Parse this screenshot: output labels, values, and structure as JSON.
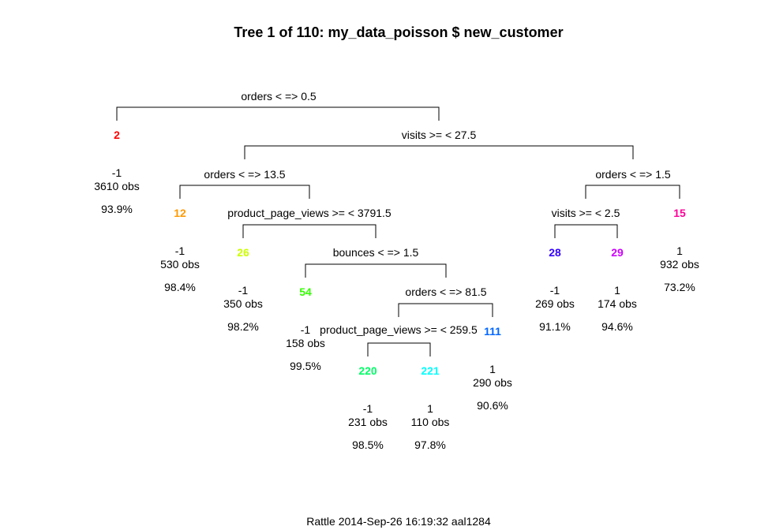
{
  "title": "Tree 1 of 110: my_data_poisson $ new_customer",
  "footer": "Rattle 2014-Sep-26 16:19:32 aal1284",
  "splits": [
    {
      "id": "s1",
      "label": "orders < => 0.5"
    },
    {
      "id": "s3",
      "label": "visits >= < 27.5"
    },
    {
      "id": "s6",
      "label": "orders < => 13.5"
    },
    {
      "id": "s7",
      "label": "orders < => 1.5"
    },
    {
      "id": "s13",
      "label": "product_page_views >= < 3791.5"
    },
    {
      "id": "s14",
      "label": "visits >= < 2.5"
    },
    {
      "id": "s27",
      "label": "bounces < => 1.5"
    },
    {
      "id": "s55",
      "label": "orders < => 81.5"
    },
    {
      "id": "s110",
      "label": "product_page_views >= < 259.5"
    }
  ],
  "nodes": [
    {
      "id": "2",
      "color": "#ff0000",
      "value": "-1",
      "obs": "3610 obs",
      "pct": "93.9%"
    },
    {
      "id": "12",
      "color": "#ff9900",
      "value": "-1",
      "obs": "530 obs",
      "pct": "98.4%"
    },
    {
      "id": "26",
      "color": "#ccff00",
      "value": "-1",
      "obs": "350 obs",
      "pct": "98.2%"
    },
    {
      "id": "54",
      "color": "#33ff00",
      "value": "-1",
      "obs": "158 obs",
      "pct": "99.5%"
    },
    {
      "id": "220",
      "color": "#00ff66",
      "value": "-1",
      "obs": "231 obs",
      "pct": "98.5%"
    },
    {
      "id": "221",
      "color": "#00ffff",
      "value": "1",
      "obs": "110 obs",
      "pct": "97.8%"
    },
    {
      "id": "111",
      "color": "#0066ff",
      "value": "1",
      "obs": "290 obs",
      "pct": "90.6%"
    },
    {
      "id": "28",
      "color": "#3300ff",
      "value": "-1",
      "obs": "269 obs",
      "pct": "91.1%"
    },
    {
      "id": "29",
      "color": "#cc00ff",
      "value": "1",
      "obs": "174 obs",
      "pct": "94.6%"
    },
    {
      "id": "15",
      "color": "#ff0099",
      "value": "1",
      "obs": "932 obs",
      "pct": "73.2%"
    }
  ]
}
